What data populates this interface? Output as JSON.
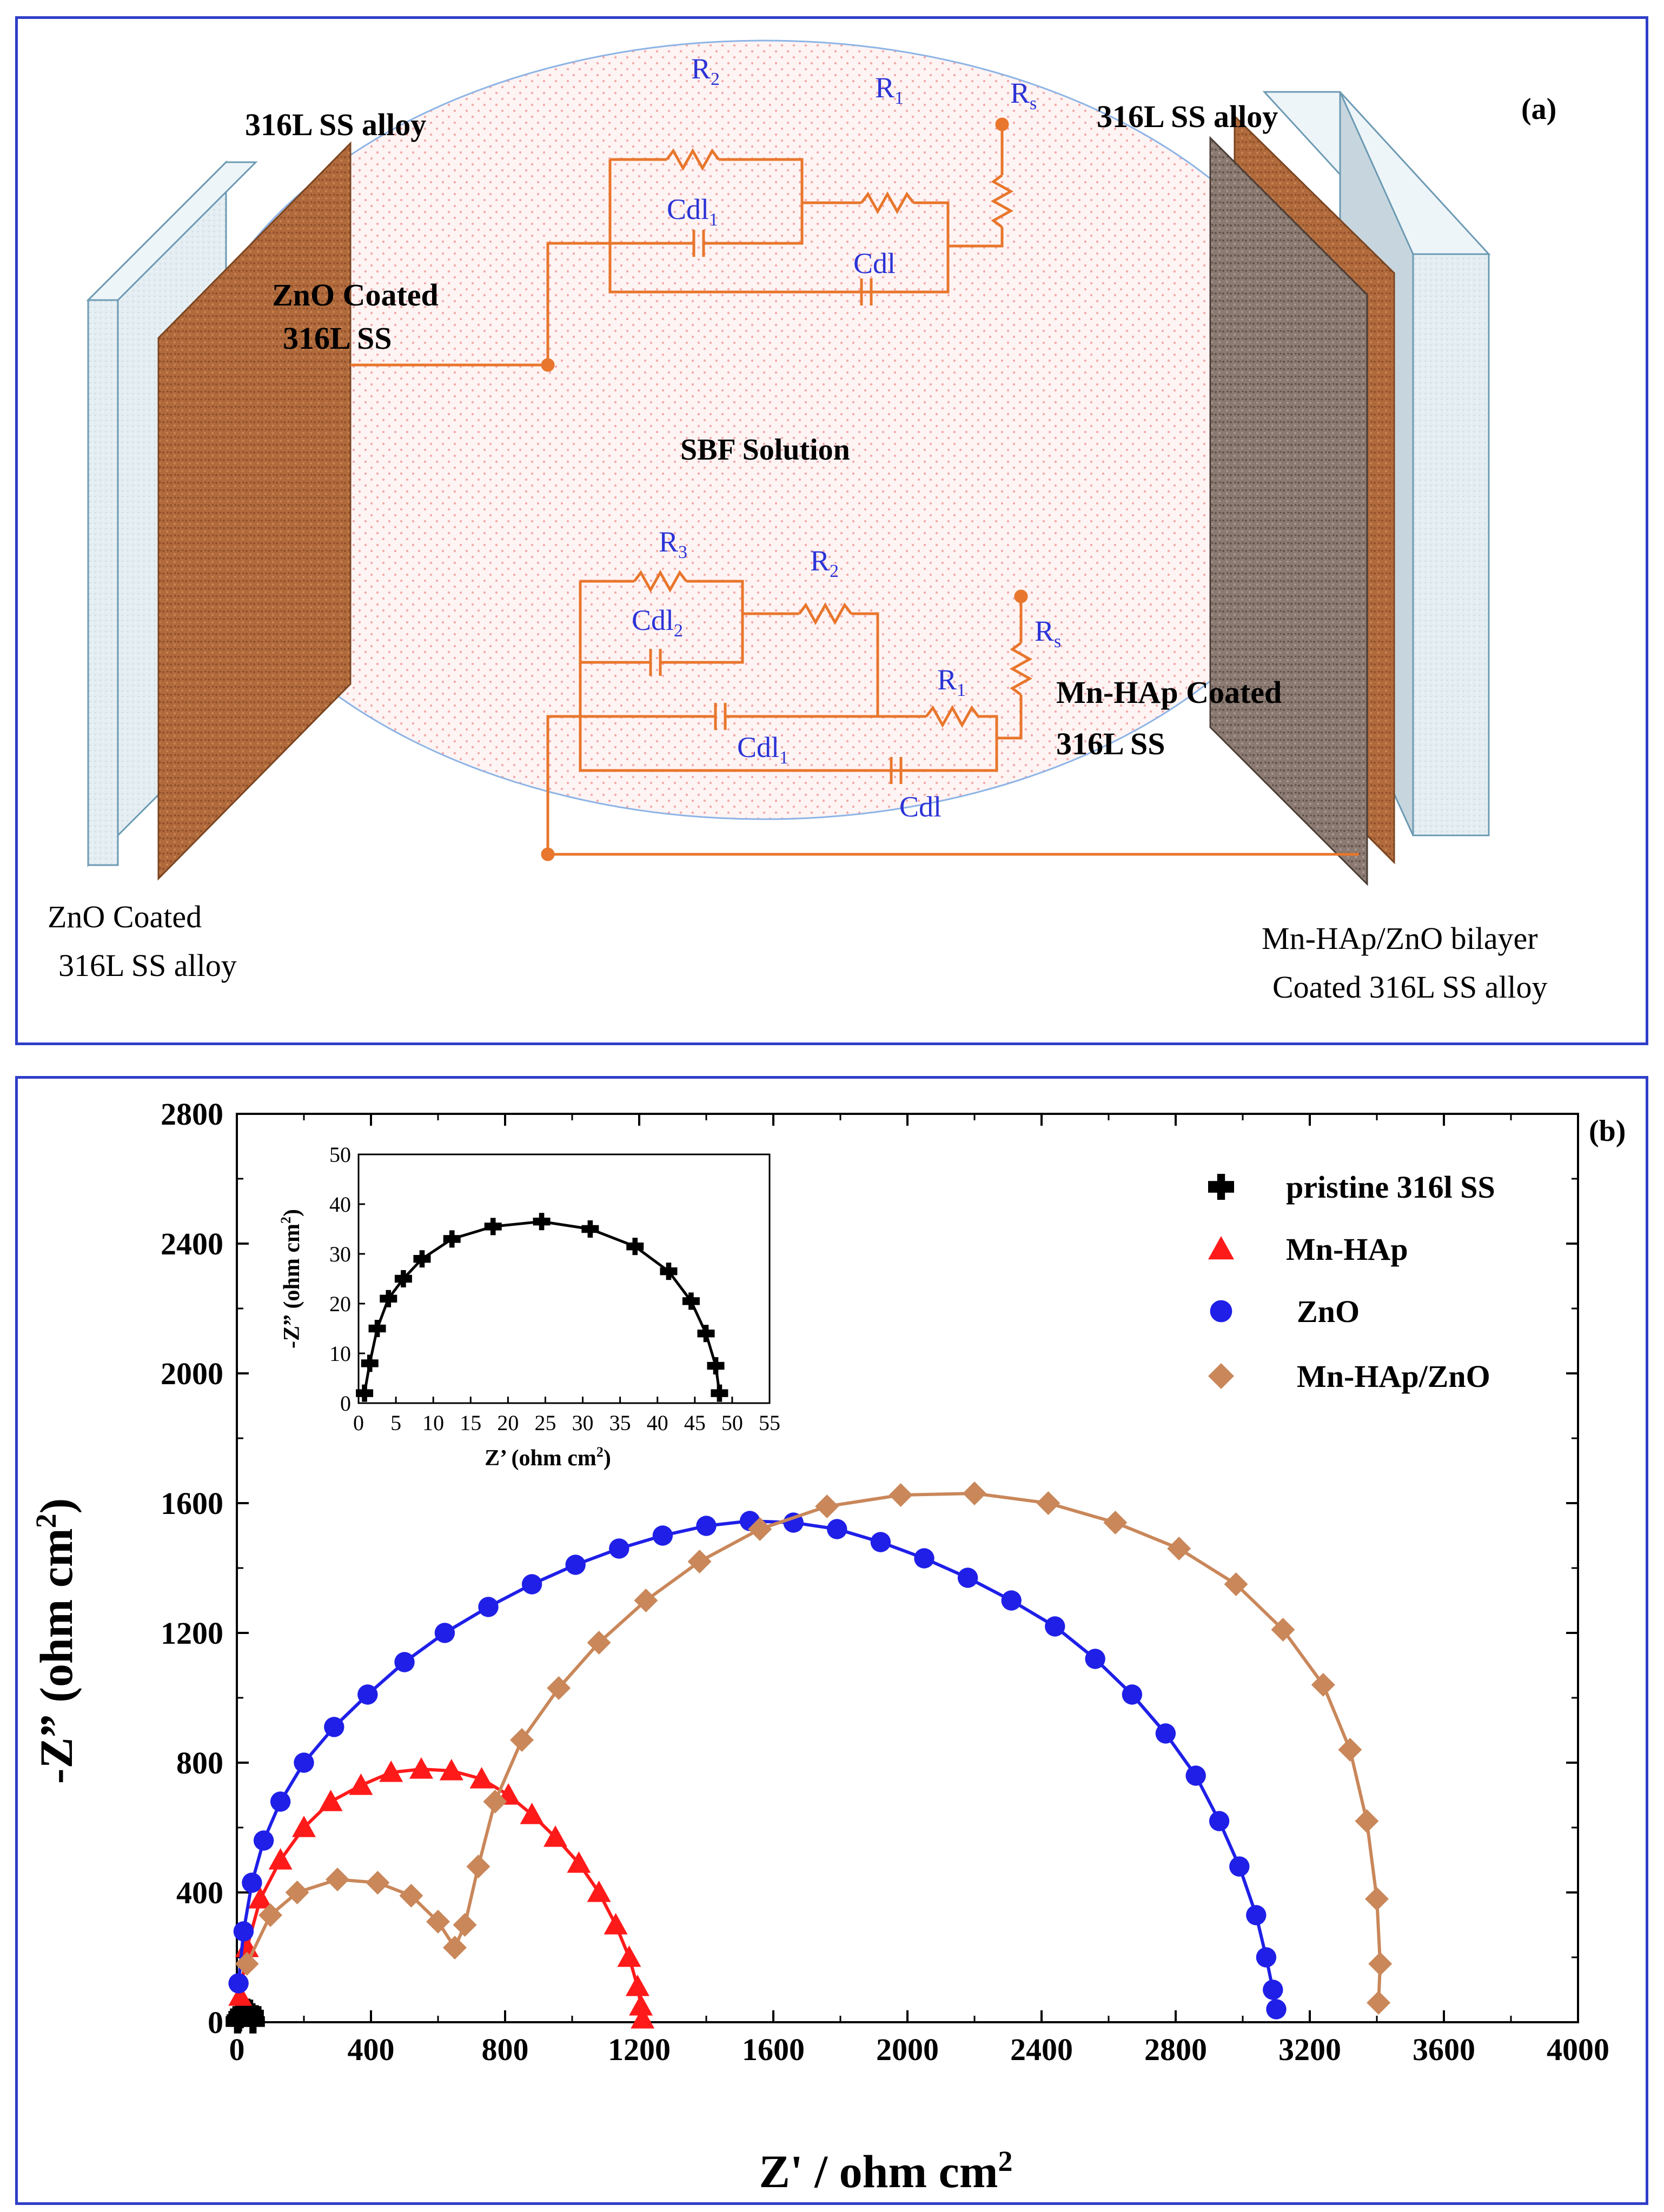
{
  "panel_a": {
    "label": "(a)",
    "left_top_label": "316L SS alloy",
    "right_top_label": "316L SS alloy",
    "left_coat_line1": "ZnO Coated",
    "left_coat_line2": "316L SS",
    "right_coat_line1": "Mn-HAp Coated",
    "right_coat_line2": "316L SS",
    "solution_label": "SBF Solution",
    "bottom_left_line1": "ZnO Coated",
    "bottom_left_line2": "316L SS alloy",
    "bottom_right_line1": "Mn-HAp/ZnO bilayer",
    "bottom_right_line2": "Coated 316L SS alloy",
    "circuit1": {
      "r2": "R",
      "r2_sub": "2",
      "r1": "R",
      "r1_sub": "1",
      "rs": "R",
      "rs_sub": "s",
      "cdl1": "Cdl",
      "cdl1_sub": "1",
      "cdl": "Cdl"
    },
    "circuit2": {
      "r3": "R",
      "r3_sub": "3",
      "r2": "R",
      "r2_sub": "2",
      "r1": "R",
      "r1_sub": "1",
      "rs": "R",
      "rs_sub": "s",
      "cdl2": "Cdl",
      "cdl2_sub": "2",
      "cdl1": "Cdl",
      "cdl1_sub": "1",
      "cdl": "Cdl"
    },
    "colors": {
      "circuit": "#e8762c",
      "label_blue": "#2b33d6",
      "left_plate": "#b06a3c",
      "right_plate": "#8a7a72",
      "glass": "#dde9ef"
    }
  },
  "panel_b": {
    "label": "(b)",
    "chart_data": {
      "type": "scatter",
      "xlabel": "Z' / ohm cm",
      "xlabel_sup": "2",
      "ylabel": "-Z” (ohm cm",
      "ylabel_sup": "2",
      "ylabel_end": ")",
      "xlim": [
        0,
        4000
      ],
      "ylim": [
        0,
        2800
      ],
      "xticks": [
        "0",
        "400",
        "800",
        "1200",
        "1600",
        "2000",
        "2400",
        "2800",
        "3200",
        "3600",
        "4000"
      ],
      "yticks": [
        "0",
        "400",
        "800",
        "1200",
        "1600",
        "2000",
        "2400",
        "2800"
      ],
      "legend_position": "top-right",
      "series": [
        {
          "name": "pristine 316l SS",
          "marker": "plus",
          "color": "#000000",
          "x": [
            2,
            5,
            10,
            15,
            22,
            30,
            38,
            45,
            48
          ],
          "y": [
            2,
            8,
            18,
            26,
            33,
            36,
            33,
            22,
            2
          ]
        },
        {
          "name": "Mn-HAp",
          "marker": "triangle",
          "color": "#ff1a1a",
          "x": [
            10,
            30,
            70,
            130,
            200,
            280,
            370,
            460,
            550,
            640,
            730,
            810,
            880,
            950,
            1020,
            1080,
            1130,
            1170,
            1195,
            1205,
            1210
          ],
          "y": [
            80,
            230,
            380,
            500,
            600,
            680,
            730,
            770,
            780,
            775,
            750,
            700,
            640,
            570,
            490,
            400,
            300,
            200,
            110,
            50,
            10
          ]
        },
        {
          "name": "ZnO",
          "marker": "circle",
          "color": "#1f1fe8",
          "x": [
            5,
            20,
            45,
            80,
            130,
            200,
            290,
            390,
            500,
            620,
            750,
            880,
            1010,
            1140,
            1270,
            1400,
            1530,
            1660,
            1790,
            1920,
            2050,
            2180,
            2310,
            2440,
            2560,
            2670,
            2770,
            2860,
            2930,
            2990,
            3040,
            3070,
            3090,
            3100
          ],
          "y": [
            120,
            280,
            430,
            560,
            680,
            800,
            910,
            1010,
            1110,
            1200,
            1280,
            1350,
            1410,
            1460,
            1500,
            1530,
            1545,
            1540,
            1520,
            1480,
            1430,
            1370,
            1300,
            1220,
            1120,
            1010,
            890,
            760,
            620,
            480,
            330,
            200,
            100,
            40
          ]
        },
        {
          "name": "Mn-HAp/ZnO",
          "marker": "diamond",
          "color": "#c9875a",
          "x": [
            30,
            100,
            180,
            300,
            420,
            520,
            600,
            650,
            680,
            720,
            770,
            850,
            960,
            1080,
            1220,
            1380,
            1560,
            1760,
            1980,
            2200,
            2420,
            2620,
            2810,
            2980,
            3120,
            3240,
            3320,
            3370,
            3400,
            3410,
            3405
          ],
          "y": [
            180,
            330,
            400,
            440,
            430,
            390,
            310,
            230,
            300,
            480,
            680,
            870,
            1030,
            1170,
            1300,
            1420,
            1520,
            1590,
            1625,
            1630,
            1600,
            1540,
            1460,
            1350,
            1210,
            1040,
            840,
            620,
            380,
            180,
            60
          ]
        }
      ]
    },
    "inset_chart_data": {
      "type": "scatter",
      "xlabel": "Z’ (ohm cm",
      "xlabel_sup": "2",
      "xlabel_end": ")",
      "ylabel": "-Z” (ohm cm",
      "ylabel_sup": "2",
      "ylabel_end": ")",
      "xlim": [
        0,
        55
      ],
      "ylim": [
        0,
        50
      ],
      "xticks": [
        "0",
        "5",
        "10",
        "15",
        "20",
        "25",
        "30",
        "35",
        "40",
        "45",
        "50",
        "55"
      ],
      "yticks": [
        "0",
        "10",
        "20",
        "30",
        "40",
        "50"
      ],
      "series": [
        {
          "name": "pristine 316l SS",
          "marker": "plus",
          "color": "#000000",
          "x": [
            0.8,
            1.5,
            2.5,
            4,
            6,
            8.5,
            12.5,
            18,
            24.5,
            31,
            37,
            41.5,
            44.5,
            46.5,
            47.8,
            48.3
          ],
          "y": [
            2,
            8,
            15,
            21,
            25,
            29,
            33,
            35.5,
            36.5,
            35,
            31.5,
            26.5,
            20.5,
            14,
            7.5,
            2
          ]
        }
      ]
    }
  }
}
